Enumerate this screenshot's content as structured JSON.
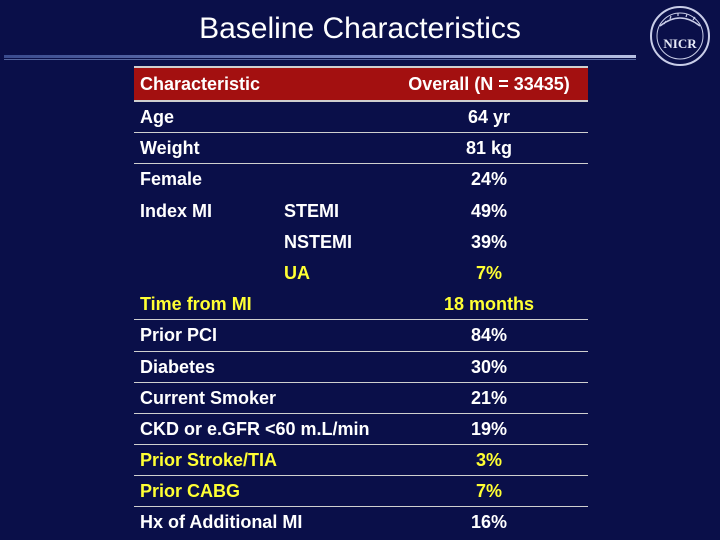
{
  "slide": {
    "title": "Baseline Characteristics"
  },
  "logo": {
    "text": "NICR"
  },
  "table": {
    "header": {
      "characteristic": "Characteristic",
      "overall": "Overall (N = 33435)"
    },
    "rows": [
      {
        "label": "Age",
        "sub": "",
        "value": "64 yr"
      },
      {
        "label": "Weight",
        "sub": "",
        "value": "81 kg"
      },
      {
        "label": "Female",
        "sub": "",
        "value": "24%"
      },
      {
        "label": "Index MI",
        "sub": "STEMI",
        "value": "49%"
      },
      {
        "label": "",
        "sub": "NSTEMI",
        "value": "39%"
      },
      {
        "label": "",
        "sub": "UA",
        "value": "7%"
      },
      {
        "label": "Time from MI",
        "sub": "",
        "value": "18 months"
      },
      {
        "label": "Prior PCI",
        "sub": "",
        "value": "84%"
      },
      {
        "label": "Diabetes",
        "sub": "",
        "value": "30%"
      },
      {
        "label": "Current Smoker",
        "sub": "",
        "value": "21%"
      },
      {
        "label": "CKD or e.GFR <60 m.L/min",
        "sub": "",
        "value": "19%"
      },
      {
        "label": "Prior Stroke/TIA",
        "sub": "",
        "value": "3%"
      },
      {
        "label": "Prior CABG",
        "sub": "",
        "value": "7%"
      },
      {
        "label": "Hx of Additional MI",
        "sub": "",
        "value": "16%"
      }
    ]
  }
}
